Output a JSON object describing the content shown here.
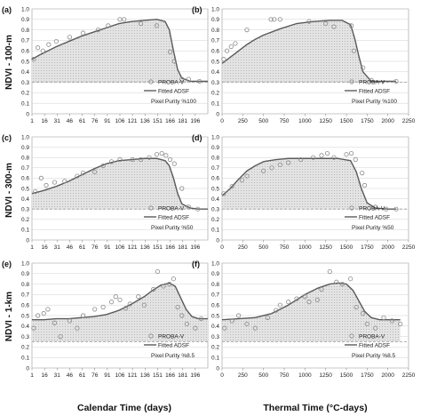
{
  "figure": {
    "x_axis_labels": [
      "Calendar Time (days)",
      "Thermal Time (°C-days)"
    ],
    "row_labels": [
      "NDVI - 100-m",
      "NDVI - 300-m",
      "NDVI - 1-km"
    ]
  },
  "legend": {
    "obs": "PROBA-V",
    "fit": "Fitted ADSF"
  },
  "colors": {
    "curve": "#5a5a5a",
    "marker": "#8a8a8a",
    "fill": "#cccccc",
    "baseline": "#999999"
  },
  "chart_data": [
    {
      "type": "line",
      "panel": "(a)",
      "purity": "Pixel Purity %100",
      "xticks": [
        "1",
        "16",
        "31",
        "46",
        "61",
        "76",
        "91",
        "106",
        "121",
        "136",
        "151",
        "166",
        "181",
        "196"
      ],
      "xlim": [
        1,
        211
      ],
      "ylim": [
        0,
        1
      ],
      "yticks": [
        "0",
        "0.1",
        "0.2",
        "0.3",
        "0.4",
        "0.5",
        "0.6",
        "0.7",
        "0.8",
        "0.9",
        "1.0"
      ],
      "baseline": 0.3,
      "series": [
        {
          "name": "PROBA-V",
          "x": [
            3,
            8,
            14,
            21,
            30,
            46,
            62,
            80,
            92,
            106,
            111,
            131,
            150,
            166,
            171,
            180,
            188,
            201
          ],
          "y": [
            0.52,
            0.63,
            0.6,
            0.66,
            0.69,
            0.73,
            0.77,
            0.8,
            0.84,
            0.9,
            0.9,
            0.86,
            0.84,
            0.59,
            0.5,
            0.33,
            0.33,
            0.31
          ]
        },
        {
          "name": "Fitted ADSF",
          "x": [
            1,
            10,
            20,
            30,
            45,
            60,
            75,
            90,
            105,
            120,
            135,
            150,
            160,
            165,
            170,
            175,
            180,
            190,
            200,
            211
          ],
          "y": [
            0.52,
            0.56,
            0.6,
            0.64,
            0.69,
            0.74,
            0.78,
            0.82,
            0.86,
            0.88,
            0.89,
            0.9,
            0.88,
            0.8,
            0.6,
            0.42,
            0.34,
            0.31,
            0.31,
            0.31
          ]
        }
      ]
    },
    {
      "type": "line",
      "panel": "(b)",
      "purity": "Pixel Purity %100",
      "xticks": [
        "0",
        "250",
        "500",
        "750",
        "1000",
        "1250",
        "1500",
        "1750",
        "2000",
        "2250"
      ],
      "xlim": [
        0,
        2250
      ],
      "ylim": [
        0,
        1
      ],
      "yticks": [
        "0",
        "0.1",
        "0.2",
        "0.3",
        "0.4",
        "0.5",
        "0.6",
        "0.7",
        "0.8",
        "0.9",
        "1.0"
      ],
      "baseline": 0.3,
      "series": [
        {
          "name": "PROBA-V",
          "x": [
            20,
            60,
            110,
            160,
            300,
            590,
            630,
            700,
            1050,
            1250,
            1350,
            1560,
            1590,
            1700,
            1800,
            2100
          ],
          "y": [
            0.52,
            0.6,
            0.64,
            0.67,
            0.8,
            0.9,
            0.9,
            0.9,
            0.88,
            0.86,
            0.83,
            0.84,
            0.6,
            0.44,
            0.32,
            0.31
          ],
          "note": "observations"
        },
        {
          "name": "Fitted ADSF",
          "x": [
            0,
            100,
            200,
            300,
            400,
            500,
            700,
            900,
            1100,
            1300,
            1450,
            1550,
            1600,
            1650,
            1700,
            1800,
            2000,
            2100
          ],
          "y": [
            0.48,
            0.54,
            0.6,
            0.66,
            0.71,
            0.75,
            0.81,
            0.86,
            0.88,
            0.89,
            0.89,
            0.85,
            0.72,
            0.55,
            0.4,
            0.31,
            0.31,
            0.31
          ]
        }
      ]
    },
    {
      "type": "line",
      "panel": "(c)",
      "purity": "Pixel Purity %50",
      "xticks": [
        "1",
        "16",
        "31",
        "46",
        "61",
        "76",
        "91",
        "106",
        "121",
        "136",
        "151",
        "166",
        "181",
        "196"
      ],
      "xlim": [
        1,
        211
      ],
      "ylim": [
        0,
        1
      ],
      "yticks": [
        "0",
        "0.1",
        "0.2",
        "0.3",
        "0.4",
        "0.5",
        "0.6",
        "0.7",
        "0.8",
        "0.9",
        "1.0"
      ],
      "baseline": 0.3,
      "series": [
        {
          "name": "PROBA-V",
          "x": [
            5,
            12,
            18,
            28,
            40,
            55,
            62,
            76,
            86,
            96,
            106,
            121,
            131,
            141,
            150,
            156,
            161,
            166,
            171,
            180,
            188,
            199
          ],
          "y": [
            0.47,
            0.6,
            0.53,
            0.56,
            0.57,
            0.62,
            0.65,
            0.66,
            0.72,
            0.76,
            0.78,
            0.78,
            0.78,
            0.8,
            0.83,
            0.84,
            0.82,
            0.78,
            0.74,
            0.5,
            0.32,
            0.3
          ]
        },
        {
          "name": "Fitted ADSF",
          "x": [
            1,
            15,
            30,
            45,
            60,
            75,
            90,
            105,
            120,
            135,
            150,
            160,
            165,
            170,
            175,
            180,
            190,
            200,
            211
          ],
          "y": [
            0.45,
            0.48,
            0.52,
            0.57,
            0.63,
            0.69,
            0.74,
            0.77,
            0.78,
            0.79,
            0.79,
            0.77,
            0.72,
            0.6,
            0.45,
            0.35,
            0.31,
            0.3,
            0.3
          ]
        }
      ]
    },
    {
      "type": "line",
      "panel": "(d)",
      "purity": "Pixel Purity %50",
      "xticks": [
        "0",
        "250",
        "500",
        "750",
        "1000",
        "1250",
        "1500",
        "1750",
        "2000",
        "2250"
      ],
      "xlim": [
        0,
        2250
      ],
      "ylim": [
        0,
        1
      ],
      "yticks": [
        "0",
        "0.1",
        "0.2",
        "0.3",
        "0.4",
        "0.5",
        "0.6",
        "0.7",
        "0.8",
        "0.9",
        "1.0"
      ],
      "baseline": 0.3,
      "series": [
        {
          "name": "PROBA-V",
          "x": [
            20,
            120,
            240,
            300,
            500,
            600,
            700,
            800,
            950,
            1100,
            1200,
            1270,
            1350,
            1500,
            1560,
            1610,
            1690,
            1720,
            1850,
            1980,
            2100
          ],
          "y": [
            0.45,
            0.52,
            0.58,
            0.62,
            0.67,
            0.7,
            0.73,
            0.75,
            0.78,
            0.8,
            0.82,
            0.84,
            0.8,
            0.83,
            0.84,
            0.78,
            0.65,
            0.53,
            0.32,
            0.3,
            0.3
          ]
        },
        {
          "name": "Fitted ADSF",
          "x": [
            0,
            100,
            200,
            300,
            400,
            500,
            650,
            800,
            1000,
            1200,
            1400,
            1550,
            1620,
            1680,
            1750,
            1850,
            2000,
            2100
          ],
          "y": [
            0.43,
            0.5,
            0.59,
            0.67,
            0.72,
            0.76,
            0.78,
            0.79,
            0.79,
            0.79,
            0.79,
            0.77,
            0.66,
            0.5,
            0.36,
            0.31,
            0.3,
            0.3
          ]
        }
      ]
    },
    {
      "type": "line",
      "panel": "(e)",
      "purity": "Pixel Purity %8.5",
      "xticks": [
        "1",
        "16",
        "31",
        "46",
        "61",
        "76",
        "91",
        "106",
        "121",
        "136",
        "151",
        "166",
        "181",
        "196"
      ],
      "xlim": [
        1,
        211
      ],
      "ylim": [
        0,
        1
      ],
      "yticks": [
        "0",
        "0.1",
        "0.2",
        "0.3",
        "0.4",
        "0.5",
        "0.6",
        "0.7",
        "0.8",
        "0.9",
        "1.0"
      ],
      "baseline": 0.25,
      "series": [
        {
          "name": "PROBA-V",
          "x": [
            3,
            8,
            15,
            20,
            28,
            35,
            46,
            55,
            62,
            76,
            86,
            96,
            101,
            106,
            113,
            118,
            128,
            135,
            146,
            151,
            158,
            165,
            170,
            175,
            180,
            186,
            196,
            203
          ],
          "y": [
            0.38,
            0.5,
            0.52,
            0.56,
            0.43,
            0.3,
            0.45,
            0.38,
            0.5,
            0.56,
            0.58,
            0.63,
            0.68,
            0.65,
            0.57,
            0.61,
            0.68,
            0.6,
            0.75,
            0.92,
            0.78,
            0.8,
            0.85,
            0.58,
            0.5,
            0.42,
            0.38,
            0.47
          ]
        },
        {
          "name": "Fitted ADSF",
          "x": [
            1,
            15,
            30,
            45,
            60,
            75,
            90,
            105,
            120,
            135,
            145,
            155,
            165,
            172,
            178,
            185,
            192,
            200,
            211
          ],
          "y": [
            0.46,
            0.46,
            0.47,
            0.47,
            0.48,
            0.49,
            0.51,
            0.55,
            0.61,
            0.68,
            0.74,
            0.79,
            0.81,
            0.78,
            0.68,
            0.56,
            0.49,
            0.47,
            0.47
          ]
        }
      ]
    },
    {
      "type": "line",
      "panel": "(f)",
      "purity": "Pixel Purity %8.5",
      "xticks": [
        "0",
        "250",
        "500",
        "750",
        "1000",
        "1250",
        "1500",
        "1750",
        "2000",
        "2250"
      ],
      "xlim": [
        0,
        2250
      ],
      "ylim": [
        0,
        1
      ],
      "yticks": [
        "0",
        "0.1",
        "0.2",
        "0.3",
        "0.4",
        "0.5",
        "0.6",
        "0.7",
        "0.8",
        "0.9",
        "1.0"
      ],
      "baseline": 0.25,
      "series": [
        {
          "name": "PROBA-V",
          "x": [
            30,
            120,
            200,
            300,
            400,
            550,
            650,
            700,
            800,
            900,
            1000,
            1050,
            1150,
            1200,
            1300,
            1380,
            1450,
            1550,
            1620,
            1700,
            1750,
            1850,
            1950,
            2050,
            2150
          ],
          "y": [
            0.38,
            0.45,
            0.5,
            0.42,
            0.38,
            0.48,
            0.55,
            0.6,
            0.63,
            0.66,
            0.68,
            0.63,
            0.65,
            0.75,
            0.92,
            0.82,
            0.8,
            0.85,
            0.58,
            0.52,
            0.42,
            0.38,
            0.48,
            0.45,
            0.42
          ]
        },
        {
          "name": "Fitted ADSF",
          "x": [
            0,
            200,
            400,
            600,
            800,
            1000,
            1150,
            1300,
            1400,
            1500,
            1580,
            1650,
            1720,
            1800,
            1900,
            2000,
            2150
          ],
          "y": [
            0.46,
            0.47,
            0.48,
            0.52,
            0.6,
            0.7,
            0.76,
            0.8,
            0.81,
            0.8,
            0.74,
            0.64,
            0.54,
            0.48,
            0.46,
            0.46,
            0.46
          ]
        }
      ]
    }
  ]
}
